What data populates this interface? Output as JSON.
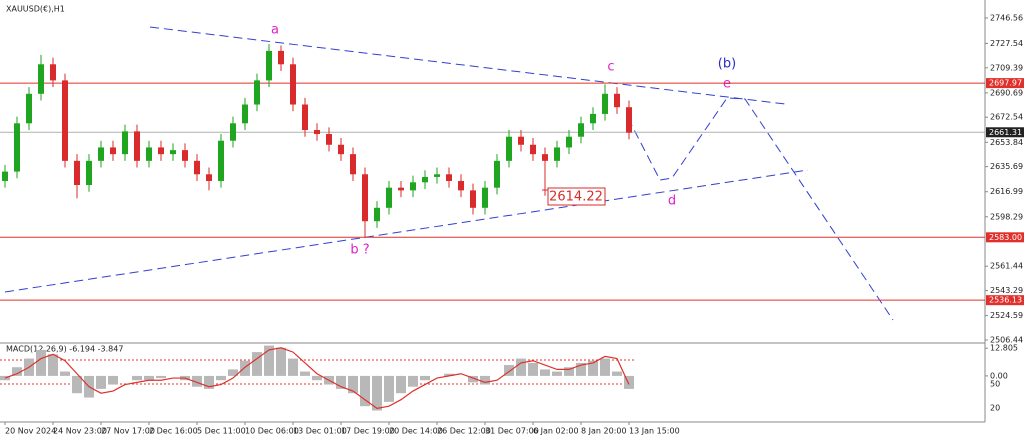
{
  "chart_data": [
    {
      "type": "candlestick",
      "title": "XAUUSD(€),H1",
      "categories": [
        "20 Nov 2024",
        null,
        null,
        null,
        "24 Nov 23:00",
        null,
        null,
        null,
        "27 Nov 17:00",
        null,
        null,
        null,
        "2 Dec 16:00",
        null,
        null,
        null,
        "5 Dec 11:00",
        null,
        null,
        null,
        "10 Dec 06:00",
        null,
        null,
        null,
        "13 Dec 01:00",
        null,
        null,
        null,
        "17 Dec 19:00",
        null,
        null,
        null,
        "20 Dec 14:00",
        null,
        null,
        null,
        "26 Dec 12:00",
        null,
        null,
        null,
        "31 Dec 07:00",
        null,
        null,
        null,
        "6 Jan 02:00",
        null,
        null,
        null,
        "8 Jan 20:00",
        null,
        null,
        null,
        "13 Jan 15:00"
      ],
      "open": [
        2625,
        2632,
        2668,
        2690,
        2712,
        2700,
        2640,
        2622,
        2640,
        2650,
        2645,
        2662,
        2640,
        2650,
        2645,
        2648,
        2640,
        2630,
        2625,
        2655,
        2668,
        2682,
        2700,
        2722,
        2712,
        2682,
        2663,
        2660,
        2652,
        2645,
        2630,
        2595,
        2605,
        2620,
        2618,
        2624,
        2628,
        2630,
        2625,
        2618,
        2605,
        2620,
        2640,
        2658,
        2652,
        2645,
        2640,
        2650,
        2658,
        2668,
        2675,
        2690,
        2680
      ],
      "high": [
        2637,
        2673,
        2695,
        2719,
        2717,
        2705,
        2645,
        2645,
        2655,
        2655,
        2667,
        2667,
        2655,
        2655,
        2653,
        2653,
        2645,
        2635,
        2660,
        2673,
        2687,
        2705,
        2727,
        2726,
        2717,
        2687,
        2668,
        2665,
        2657,
        2650,
        2635,
        2610,
        2625,
        2625,
        2629,
        2633,
        2635,
        2635,
        2630,
        2623,
        2625,
        2645,
        2663,
        2663,
        2657,
        2650,
        2655,
        2663,
        2673,
        2680,
        2697,
        2695,
        2685
      ],
      "low": [
        2620,
        2627,
        2663,
        2685,
        2695,
        2635,
        2612,
        2617,
        2635,
        2640,
        2640,
        2635,
        2635,
        2640,
        2640,
        2635,
        2625,
        2618,
        2620,
        2650,
        2663,
        2677,
        2695,
        2707,
        2677,
        2658,
        2655,
        2647,
        2640,
        2625,
        2583,
        2590,
        2600,
        2613,
        2613,
        2619,
        2623,
        2620,
        2613,
        2600,
        2600,
        2615,
        2635,
        2647,
        2640,
        2614,
        2635,
        2645,
        2653,
        2663,
        2670,
        2675,
        2656
      ],
      "close": [
        2632,
        2668,
        2690,
        2712,
        2700,
        2640,
        2622,
        2640,
        2650,
        2645,
        2662,
        2640,
        2650,
        2645,
        2648,
        2640,
        2630,
        2625,
        2655,
        2668,
        2682,
        2700,
        2722,
        2712,
        2682,
        2663,
        2660,
        2652,
        2645,
        2630,
        2595,
        2605,
        2620,
        2618,
        2624,
        2628,
        2630,
        2625,
        2618,
        2605,
        2620,
        2640,
        2658,
        2652,
        2645,
        2640,
        2650,
        2658,
        2668,
        2675,
        2690,
        2680,
        2661
      ],
      "up_color": "#1fa51f",
      "down_color": "#d92b2b",
      "ylim": [
        2504.2,
        2756.2
      ],
      "yticks": [
        2746.56,
        2727.54,
        2709.39,
        2690.69,
        2672.54,
        2653.84,
        2635.69,
        2616.99,
        2598.29,
        2561.44,
        2543.29,
        2524.59,
        2506.44
      ],
      "levels": [
        2697.97,
        {
          "value": 2583,
          "label": "2583.00"
        },
        2536.13
      ],
      "level_color": "#e0302b",
      "last_price": 2661.31,
      "marked_low": 2614.22,
      "annotations": [
        "a",
        "b ?",
        "c",
        "d",
        "(b)",
        "e"
      ]
    },
    {
      "type": "macd",
      "title": "MACD(12,26,9) -6.194 -3.847",
      "histogram": [
        -2,
        4,
        8,
        12,
        10,
        2,
        -8,
        -10,
        -6,
        -4,
        0,
        -2,
        -2,
        -1,
        0,
        -2,
        -5,
        -6,
        -2,
        3,
        7,
        11,
        14,
        13,
        8,
        2,
        -2,
        -4,
        -6,
        -8,
        -14,
        -16,
        -12,
        -8,
        -5,
        -2,
        0,
        1,
        0,
        -3,
        -4,
        0,
        5,
        8,
        6,
        3,
        2,
        4,
        6,
        7,
        8,
        2,
        -6
      ],
      "signal": [
        -1,
        1,
        4,
        8,
        10,
        7,
        1,
        -5,
        -8,
        -7,
        -4,
        -3,
        -2,
        -2,
        -1,
        -1,
        -3,
        -5,
        -4,
        -1,
        4,
        8,
        12,
        13,
        11,
        6,
        1,
        -2,
        -5,
        -7,
        -11,
        -15,
        -14,
        -11,
        -7,
        -4,
        -1,
        0,
        1,
        -1,
        -3,
        -2,
        2,
        6,
        7,
        5,
        3,
        3,
        5,
        6,
        9,
        8,
        -4
      ],
      "histogram_color": "#b8b8b8",
      "signal_color": "#e0302b",
      "ylim": [
        -21.3,
        15.2
      ],
      "yticks": [
        12.805,
        {
          "value": 0,
          "label": "0.00"
        }
      ],
      "annotations": [
        "50",
        "20"
      ]
    }
  ]
}
